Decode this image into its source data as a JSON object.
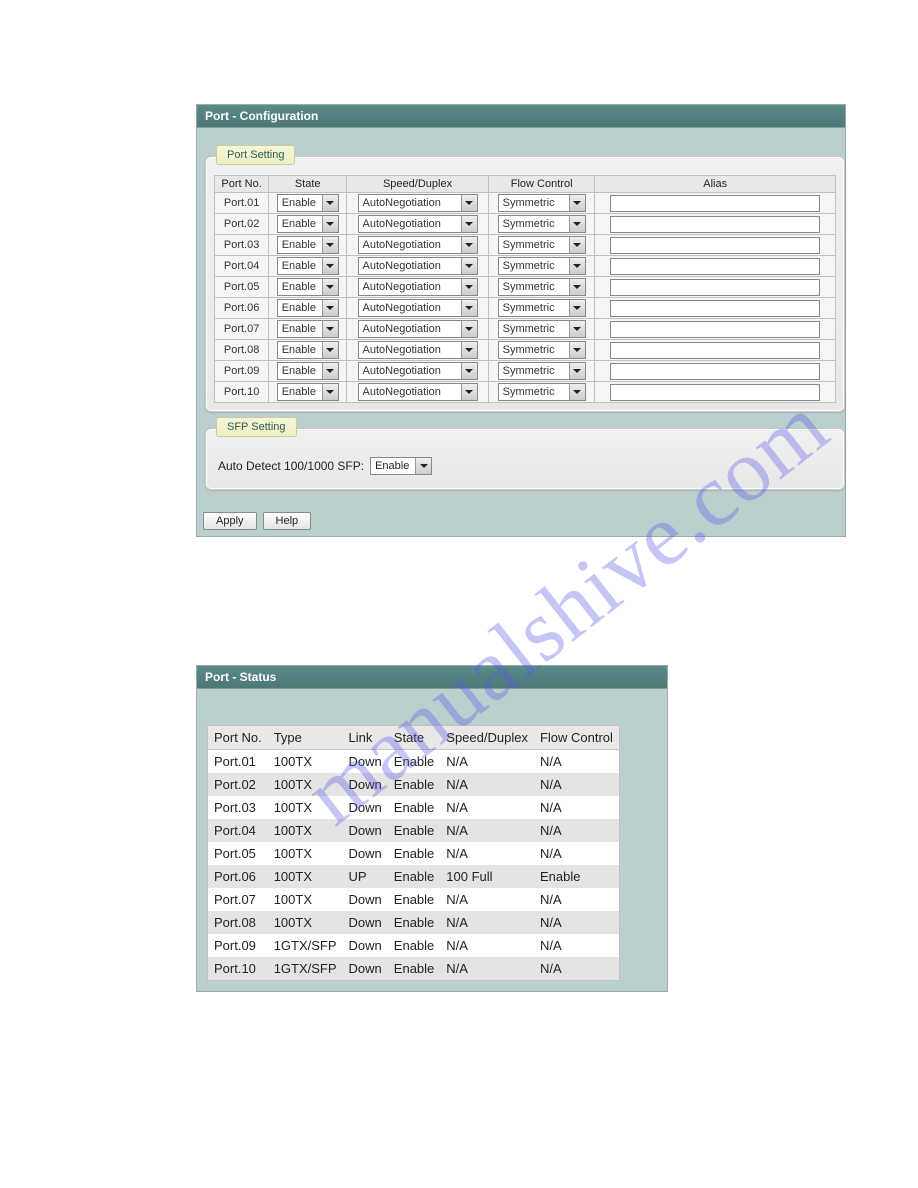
{
  "watermark_text": "manualshive.com",
  "config": {
    "title": "Port - Configuration",
    "port_setting_legend": "Port Setting",
    "sfp_setting_legend": "SFP Setting",
    "headers": {
      "port_no": "Port No.",
      "state": "State",
      "speed_duplex": "Speed/Duplex",
      "flow_control": "Flow Control",
      "alias": "Alias"
    },
    "rows": [
      {
        "port": "Port.01",
        "state": "Enable",
        "speed": "AutoNegotiation",
        "flow": "Symmetric",
        "alias": ""
      },
      {
        "port": "Port.02",
        "state": "Enable",
        "speed": "AutoNegotiation",
        "flow": "Symmetric",
        "alias": ""
      },
      {
        "port": "Port.03",
        "state": "Enable",
        "speed": "AutoNegotiation",
        "flow": "Symmetric",
        "alias": ""
      },
      {
        "port": "Port.04",
        "state": "Enable",
        "speed": "AutoNegotiation",
        "flow": "Symmetric",
        "alias": ""
      },
      {
        "port": "Port.05",
        "state": "Enable",
        "speed": "AutoNegotiation",
        "flow": "Symmetric",
        "alias": ""
      },
      {
        "port": "Port.06",
        "state": "Enable",
        "speed": "AutoNegotiation",
        "flow": "Symmetric",
        "alias": ""
      },
      {
        "port": "Port.07",
        "state": "Enable",
        "speed": "AutoNegotiation",
        "flow": "Symmetric",
        "alias": ""
      },
      {
        "port": "Port.08",
        "state": "Enable",
        "speed": "AutoNegotiation",
        "flow": "Symmetric",
        "alias": ""
      },
      {
        "port": "Port.09",
        "state": "Enable",
        "speed": "AutoNegotiation",
        "flow": "Symmetric",
        "alias": ""
      },
      {
        "port": "Port.10",
        "state": "Enable",
        "speed": "AutoNegotiation",
        "flow": "Symmetric",
        "alias": ""
      }
    ],
    "sfp_label": "Auto Detect 100/1000 SFP:",
    "sfp_value": "Enable",
    "apply_label": "Apply",
    "help_label": "Help"
  },
  "status": {
    "title": "Port - Status",
    "headers": {
      "port_no": "Port No.",
      "type": "Type",
      "link": "Link",
      "state": "State",
      "speed_duplex": "Speed/Duplex",
      "flow_control": "Flow Control"
    },
    "rows": [
      {
        "port": "Port.01",
        "type": "100TX",
        "link": "Down",
        "state": "Enable",
        "speed": "N/A",
        "flow": "N/A"
      },
      {
        "port": "Port.02",
        "type": "100TX",
        "link": "Down",
        "state": "Enable",
        "speed": "N/A",
        "flow": "N/A"
      },
      {
        "port": "Port.03",
        "type": "100TX",
        "link": "Down",
        "state": "Enable",
        "speed": "N/A",
        "flow": "N/A"
      },
      {
        "port": "Port.04",
        "type": "100TX",
        "link": "Down",
        "state": "Enable",
        "speed": "N/A",
        "flow": "N/A"
      },
      {
        "port": "Port.05",
        "type": "100TX",
        "link": "Down",
        "state": "Enable",
        "speed": "N/A",
        "flow": "N/A"
      },
      {
        "port": "Port.06",
        "type": "100TX",
        "link": "UP",
        "state": "Enable",
        "speed": "100 Full",
        "flow": "Enable"
      },
      {
        "port": "Port.07",
        "type": "100TX",
        "link": "Down",
        "state": "Enable",
        "speed": "N/A",
        "flow": "N/A"
      },
      {
        "port": "Port.08",
        "type": "100TX",
        "link": "Down",
        "state": "Enable",
        "speed": "N/A",
        "flow": "N/A"
      },
      {
        "port": "Port.09",
        "type": "1GTX/SFP",
        "link": "Down",
        "state": "Enable",
        "speed": "N/A",
        "flow": "N/A"
      },
      {
        "port": "Port.10",
        "type": "1GTX/SFP",
        "link": "Down",
        "state": "Enable",
        "speed": "N/A",
        "flow": "N/A"
      }
    ]
  },
  "colors": {
    "panel_header": "#4d7878",
    "panel_bg": "#bccfcf",
    "fieldset_bg": "#ececec",
    "legend_bg": "#eef0c0",
    "table_border": "#c0c0c0",
    "row_alt": "#e4e4e4"
  }
}
